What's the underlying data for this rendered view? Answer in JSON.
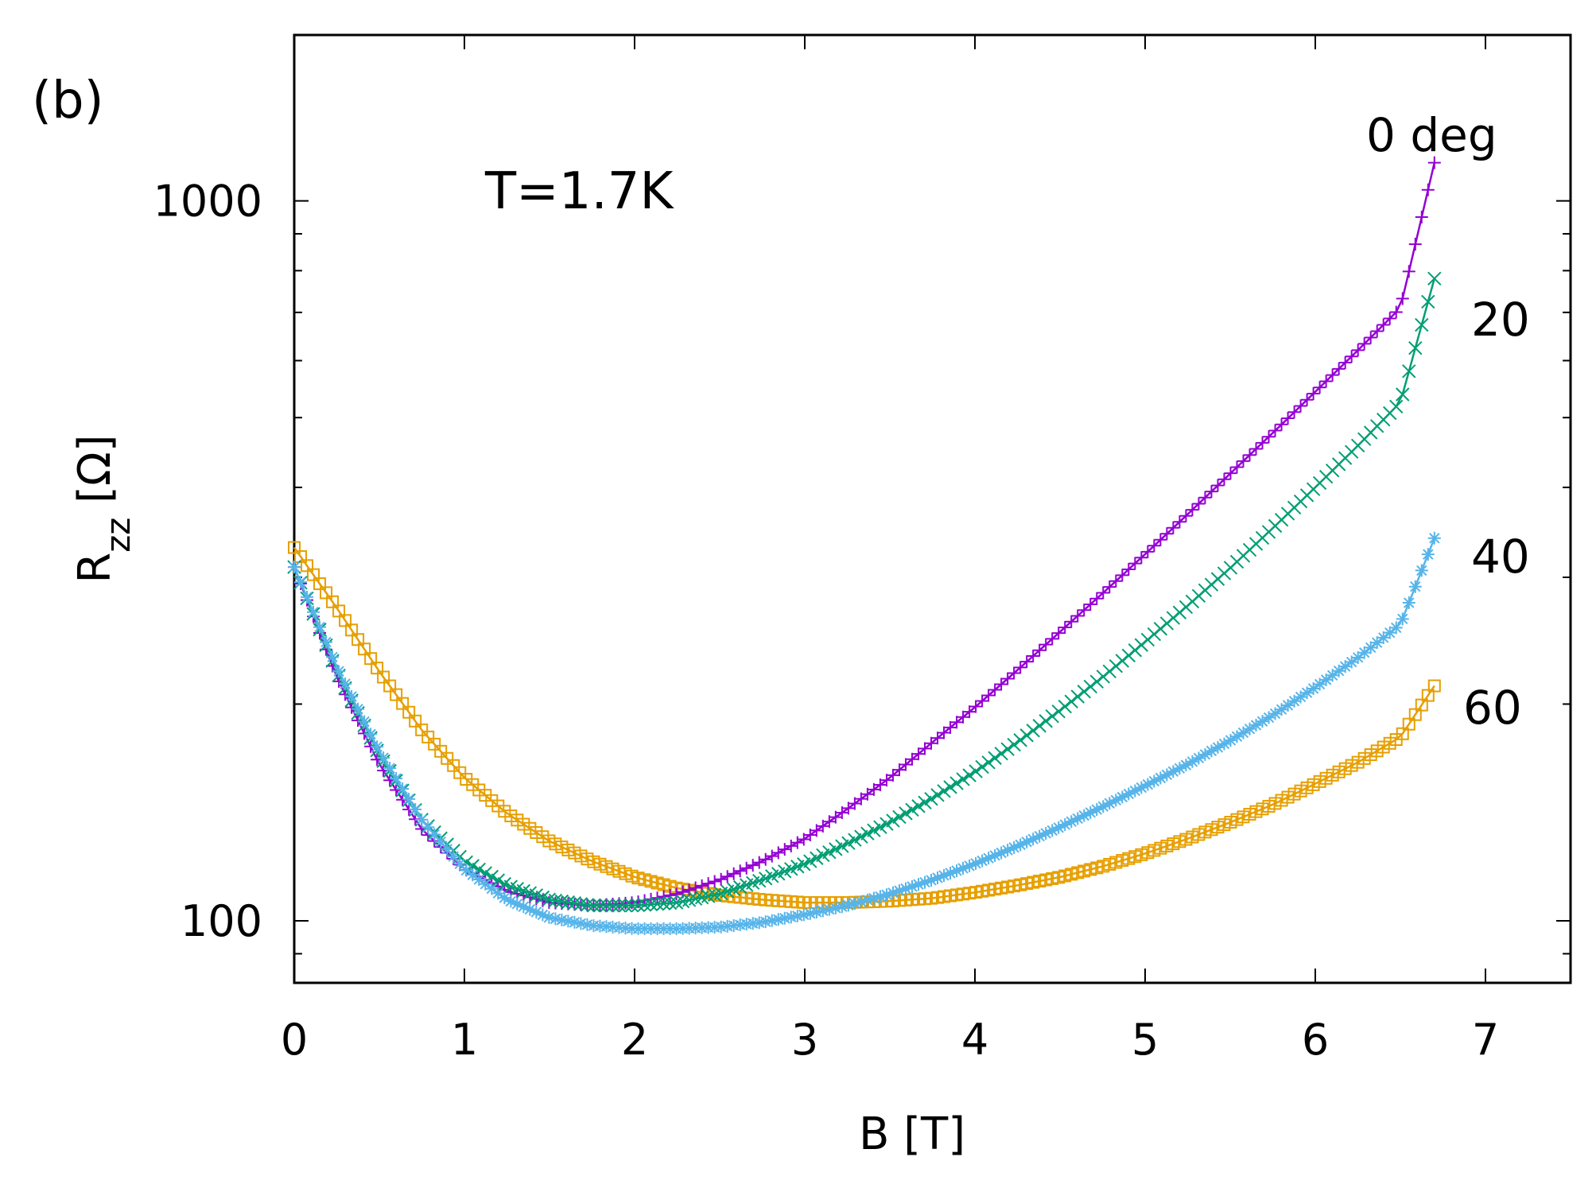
{
  "chart_data": {
    "type": "line",
    "panel_label": "(b)",
    "annotation": "T=1.7K",
    "xlabel": "B [T]",
    "ylabel": {
      "base": "R",
      "subscript": "zz",
      "unit": "[Ω]"
    },
    "xlim": [
      0,
      7.5
    ],
    "ylim": [
      82,
      1700
    ],
    "yscale": "log",
    "xticks": [
      0,
      1,
      2,
      3,
      4,
      5,
      6,
      7
    ],
    "yticks": [
      100,
      1000
    ],
    "ytick_labels": [
      "100",
      "1000"
    ],
    "x": [
      0,
      0.25,
      0.5,
      0.75,
      1,
      1.25,
      1.5,
      1.75,
      2,
      2.25,
      2.5,
      2.75,
      3,
      3.25,
      3.5,
      3.75,
      4,
      4.25,
      4.5,
      4.75,
      5,
      5.25,
      5.5,
      5.75,
      6,
      6.25,
      6.5,
      6.7
    ],
    "series": [
      {
        "name": "0 deg",
        "label": "0 deg",
        "color": "#9400d3",
        "marker": "plus",
        "values": [
          310,
          218,
          165,
          134,
          118,
          110,
          106,
          105,
          106,
          109,
          114,
          121,
          130,
          143,
          158,
          177,
          198,
          223,
          252,
          285,
          323,
          367,
          418,
          476,
          543,
          620,
          710,
          1130
        ]
      },
      {
        "name": "20 deg",
        "label": "20",
        "color": "#009e73",
        "marker": "x",
        "values": [
          310,
          222,
          170,
          138,
          121,
          112,
          107,
          105,
          105,
          106,
          109,
          114,
          120,
          128,
          137,
          148,
          161,
          177,
          196,
          218,
          244,
          274,
          309,
          351,
          400,
          457,
          525,
          780
        ]
      },
      {
        "name": "40 deg",
        "label": "40",
        "color": "#56b4e9",
        "marker": "star",
        "values": [
          310,
          225,
          172,
          138,
          118,
          107,
          101,
          98.5,
          97.5,
          97.5,
          98,
          99.5,
          102,
          105,
          109,
          114,
          120,
          127,
          135,
          144,
          154,
          165,
          178,
          193,
          211,
          232,
          258,
          340
        ]
      },
      {
        "name": "60 deg",
        "label": "60",
        "color": "#e69f00",
        "marker": "square",
        "values": [
          330,
          272,
          222,
          184,
          158,
          141,
          129,
          121,
          115,
          111,
          108.5,
          107,
          106,
          106,
          106.5,
          107.5,
          109.5,
          112,
          115,
          119,
          124,
          130,
          137,
          145,
          155,
          166,
          180,
          212
        ]
      }
    ]
  }
}
